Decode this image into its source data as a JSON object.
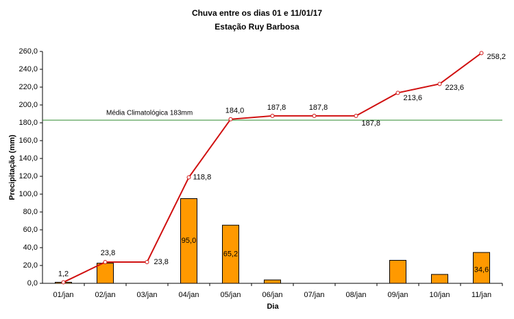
{
  "chart_data": {
    "type": "bar-line",
    "title": "Chuva entre os dias 01 e 11/01/17",
    "subtitle": "Estação Ruy Barbosa",
    "x_label": "Dia",
    "y_label": "Precipitação (mm)",
    "categories": [
      "01/jan",
      "02/jan",
      "03/jan",
      "04/jan",
      "05/jan",
      "06/jan",
      "07/jan",
      "08/jan",
      "09/jan",
      "10/jan",
      "11/jan"
    ],
    "series": [
      {
        "type": "bar",
        "color": "#ff9900",
        "values": [
          1.2,
          22.6,
          0,
          95.0,
          65.2,
          3.8,
          0,
          0,
          25.8,
          10.0,
          34.6
        ],
        "value_labels": [
          null,
          null,
          null,
          "95,0",
          "65,2",
          null,
          null,
          null,
          null,
          null,
          "34,6"
        ]
      },
      {
        "type": "line",
        "color": "#d01010",
        "values": [
          1.2,
          23.8,
          23.8,
          118.8,
          184.0,
          187.8,
          187.8,
          187.8,
          213.6,
          223.6,
          258.2
        ],
        "value_labels": [
          "1,2",
          "23,8",
          "23,8",
          "118,8",
          "184,0",
          "187,8",
          "187,8",
          "187,8",
          "213,6",
          "223,6",
          "258,2"
        ]
      }
    ],
    "reference_line": {
      "value": 183,
      "label": "Média Climatológica 183mm",
      "color": "#2e8b2e"
    },
    "ylim": [
      0,
      260
    ],
    "yticks": [
      {
        "value": 0,
        "label": "0,0"
      },
      {
        "value": 20,
        "label": "20,0"
      },
      {
        "value": 40,
        "label": "40,0"
      },
      {
        "value": 60,
        "label": "60,0"
      },
      {
        "value": 80,
        "label": "80,0"
      },
      {
        "value": 100,
        "label": "100,0"
      },
      {
        "value": 120,
        "label": "120,0"
      },
      {
        "value": 140,
        "label": "140,0"
      },
      {
        "value": 160,
        "label": "160,0"
      },
      {
        "value": 180,
        "label": "180,0"
      },
      {
        "value": 200,
        "label": "200,0"
      },
      {
        "value": 220,
        "label": "220,0"
      },
      {
        "value": 240,
        "label": "240,0"
      },
      {
        "value": 260,
        "label": "260,0"
      }
    ],
    "grid": false
  }
}
